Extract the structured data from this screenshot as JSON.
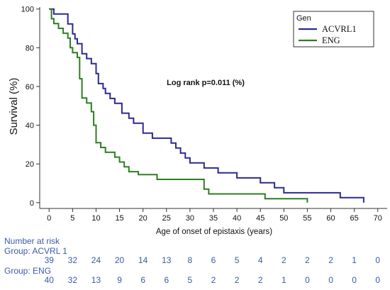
{
  "chart_data": {
    "type": "line",
    "step": true,
    "ylabel": "Survival (%)",
    "xlabel": "Age of onset of epistaxis (years)",
    "annotation": "Log rank p=0.011 (%)",
    "xlim": [
      -2,
      72
    ],
    "ylim": [
      -3,
      101
    ],
    "xticks": [
      0,
      5,
      10,
      15,
      20,
      25,
      30,
      35,
      40,
      45,
      50,
      55,
      60,
      65,
      70
    ],
    "yticks": [
      0,
      20,
      40,
      60,
      80,
      100
    ],
    "legend": {
      "title": "Gen",
      "position": "top-right"
    },
    "series": [
      {
        "name": "ACVRL1",
        "color": "#2b2b8f",
        "points": [
          [
            0,
            100
          ],
          [
            1,
            97.4
          ],
          [
            4,
            92.3
          ],
          [
            5,
            87.2
          ],
          [
            5.5,
            84.6
          ],
          [
            6,
            82.1
          ],
          [
            7,
            76.9
          ],
          [
            8,
            74.4
          ],
          [
            9,
            71.8
          ],
          [
            10,
            66.7
          ],
          [
            10.5,
            61.5
          ],
          [
            11.5,
            59
          ],
          [
            12,
            56.4
          ],
          [
            13,
            53.8
          ],
          [
            14,
            51.3
          ],
          [
            15.5,
            46.2
          ],
          [
            17,
            43.6
          ],
          [
            18,
            41
          ],
          [
            20,
            35.9
          ],
          [
            22,
            33.3
          ],
          [
            26,
            30.8
          ],
          [
            27,
            28.2
          ],
          [
            28,
            25.6
          ],
          [
            29,
            23.1
          ],
          [
            30,
            20.5
          ],
          [
            33,
            17.9
          ],
          [
            36,
            15.4
          ],
          [
            40,
            12.8
          ],
          [
            45,
            10.3
          ],
          [
            48,
            7.7
          ],
          [
            50,
            5.1
          ],
          [
            62,
            2.6
          ],
          [
            67,
            0
          ]
        ]
      },
      {
        "name": "ENG",
        "color": "#2f7d22",
        "points": [
          [
            0,
            100
          ],
          [
            0.5,
            95
          ],
          [
            1,
            92.5
          ],
          [
            2,
            90
          ],
          [
            3,
            87.5
          ],
          [
            4,
            85
          ],
          [
            4.5,
            80
          ],
          [
            5,
            77.5
          ],
          [
            6,
            75
          ],
          [
            6.5,
            64
          ],
          [
            7,
            54
          ],
          [
            8,
            51.5
          ],
          [
            9,
            47
          ],
          [
            9.5,
            40
          ],
          [
            10,
            31
          ],
          [
            11,
            28.5
          ],
          [
            12,
            26
          ],
          [
            14,
            23.5
          ],
          [
            15,
            21
          ],
          [
            16,
            18.5
          ],
          [
            17,
            16
          ],
          [
            19,
            14.5
          ],
          [
            23,
            12
          ],
          [
            33,
            7
          ],
          [
            34,
            4.5
          ],
          [
            46,
            2
          ],
          [
            55,
            0
          ]
        ]
      }
    ],
    "risk_table": {
      "title": "Number at risk",
      "groups": [
        {
          "label": "Group: ACVRL 1",
          "values": [
            "39",
            "32",
            "24",
            "20",
            "14",
            "13",
            "8",
            "6",
            "5",
            "4",
            "2",
            "2",
            "2",
            "1",
            "0"
          ]
        },
        {
          "label": "Group: ENG",
          "values": [
            "40",
            "32",
            "13",
            "9",
            "6",
            "6",
            "5",
            "2",
            "2",
            "2",
            "1",
            "0",
            "0",
            "0",
            "0"
          ]
        }
      ]
    }
  }
}
